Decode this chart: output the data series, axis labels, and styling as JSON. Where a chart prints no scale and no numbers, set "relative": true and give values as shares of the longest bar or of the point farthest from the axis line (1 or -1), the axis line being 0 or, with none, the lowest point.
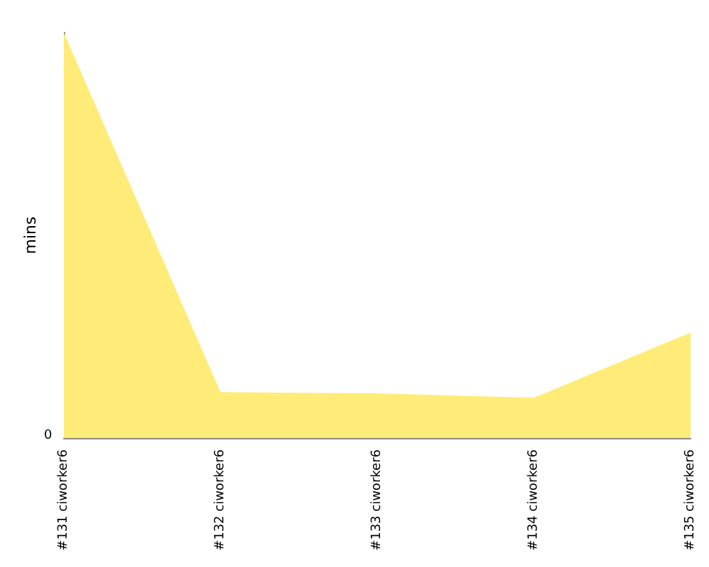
{
  "chart_data": {
    "type": "area",
    "ylabel": "mins",
    "relative": true,
    "annotations": [
      "0"
    ],
    "categories": [
      "#131 ciworker6",
      "#132 ciworker6",
      "#133 ciworker6",
      "#134 ciworker6",
      "#135 ciworker6"
    ],
    "series": [
      {
        "color": "#ffeb77",
        "values": [
          1,
          0.113,
          0.11,
          0.099,
          0.26
        ]
      }
    ],
    "grid": false
  }
}
